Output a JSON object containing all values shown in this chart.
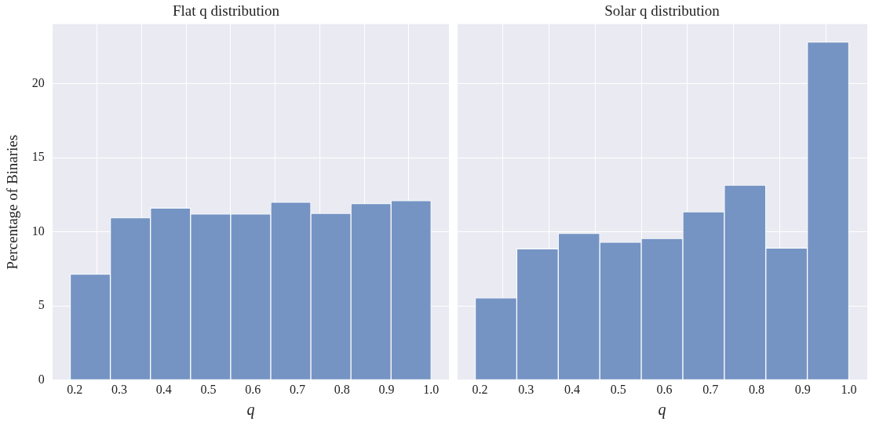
{
  "chart_data": [
    {
      "type": "histogram",
      "title": "Flat q distribution",
      "xlabel": "q",
      "ylabel": "Percentage of Binaries",
      "bins": [
        0.19,
        0.28,
        0.37,
        0.46,
        0.55,
        0.64,
        0.73,
        0.82,
        0.91,
        1.0
      ],
      "values": [
        7.15,
        10.95,
        11.6,
        11.2,
        11.2,
        12.0,
        11.25,
        11.9,
        12.1
      ],
      "color": "#7594c4",
      "xlim": [
        0.15,
        1.04
      ],
      "ylim": [
        0,
        24
      ],
      "xticks": [
        0.2,
        0.3,
        0.4,
        0.5,
        0.6,
        0.7,
        0.8,
        0.9,
        {
          "value": 1,
          "label": "1.0"
        }
      ],
      "yticks": [
        0,
        5,
        10,
        15,
        20
      ],
      "grid": true
    },
    {
      "type": "histogram",
      "title": "Solar q distribution",
      "xlabel": "q",
      "bins": [
        0.19,
        0.28,
        0.37,
        0.46,
        0.55,
        0.64,
        0.73,
        0.82,
        0.91,
        1.0
      ],
      "values": [
        5.55,
        8.85,
        9.9,
        9.3,
        9.55,
        11.35,
        13.15,
        8.9,
        22.8
      ],
      "color": "#7594c4",
      "xlim": [
        0.15,
        1.04
      ],
      "ylim": [
        0,
        24
      ],
      "xticks": [
        0.2,
        0.3,
        0.4,
        0.5,
        0.6,
        0.7,
        0.8,
        0.9,
        {
          "value": 1,
          "label": "1.0"
        }
      ],
      "yticks": [
        0,
        5,
        10,
        15,
        20
      ],
      "grid": true,
      "tick_labels": "x"
    }
  ]
}
